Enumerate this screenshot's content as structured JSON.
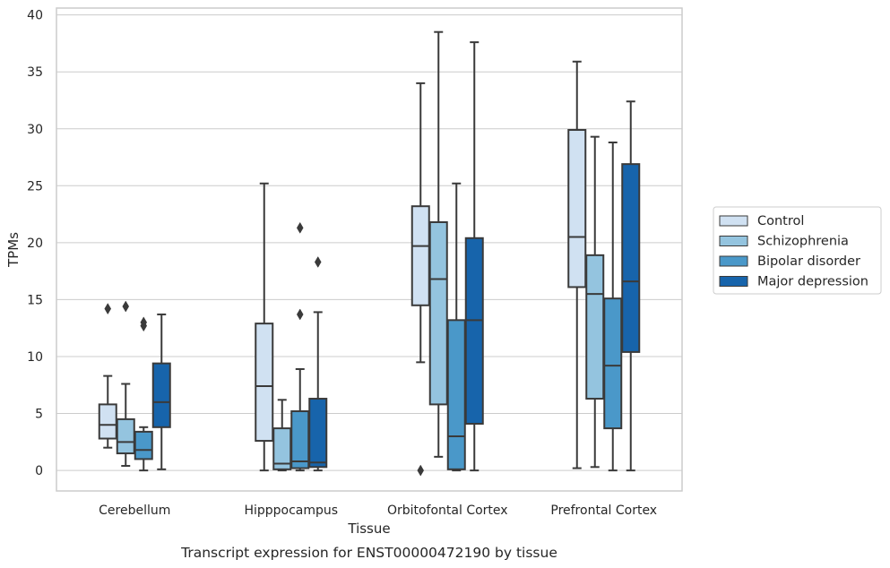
{
  "chart_data": {
    "type": "box",
    "caption": "Transcript expression for ENST00000472190 by tissue",
    "xlabel": "Tissue",
    "ylabel": "TPMs",
    "ylim": [
      -1.8,
      40.6
    ],
    "yticks": [
      0,
      5,
      10,
      15,
      20,
      25,
      30,
      35,
      40
    ],
    "grid": "horizontal",
    "legend_position": "right",
    "categories": [
      "Cerebellum",
      "Hipppocampus",
      "Orbitofontal Cortex",
      "Prefrontal Cortex"
    ],
    "series": [
      {
        "name": "Control",
        "color": "#d0e1f2",
        "boxes": [
          {
            "whisker_low": 2.0,
            "q1": 2.8,
            "median": 4.0,
            "q3": 5.8,
            "whisker_high": 8.3,
            "outliers": [
              14.2
            ]
          },
          {
            "whisker_low": 0.0,
            "q1": 2.6,
            "median": 7.4,
            "q3": 12.9,
            "whisker_high": 25.2,
            "outliers": []
          },
          {
            "whisker_low": 9.5,
            "q1": 14.5,
            "median": 19.7,
            "q3": 23.2,
            "whisker_high": 34.0,
            "outliers": [
              0.0
            ]
          },
          {
            "whisker_low": 0.2,
            "q1": 16.1,
            "median": 20.5,
            "q3": 29.9,
            "whisker_high": 35.9,
            "outliers": []
          }
        ]
      },
      {
        "name": "Schizophrenia",
        "color": "#94c4df",
        "boxes": [
          {
            "whisker_low": 0.4,
            "q1": 1.5,
            "median": 2.5,
            "q3": 4.5,
            "whisker_high": 7.6,
            "outliers": [
              14.4
            ]
          },
          {
            "whisker_low": 0.0,
            "q1": 0.1,
            "median": 0.6,
            "q3": 3.7,
            "whisker_high": 6.2,
            "outliers": []
          },
          {
            "whisker_low": 1.2,
            "q1": 5.8,
            "median": 16.8,
            "q3": 21.8,
            "whisker_high": 38.5,
            "outliers": []
          },
          {
            "whisker_low": 0.3,
            "q1": 6.3,
            "median": 15.5,
            "q3": 18.9,
            "whisker_high": 29.3,
            "outliers": []
          }
        ]
      },
      {
        "name": "Bipolar disorder",
        "color": "#4a98c9",
        "boxes": [
          {
            "whisker_low": 0.0,
            "q1": 1.0,
            "median": 1.8,
            "q3": 3.4,
            "whisker_high": 3.8,
            "outliers": [
              12.7,
              13.0
            ]
          },
          {
            "whisker_low": 0.0,
            "q1": 0.2,
            "median": 0.8,
            "q3": 5.2,
            "whisker_high": 8.9,
            "outliers": [
              13.7,
              21.3
            ]
          },
          {
            "whisker_low": 0.0,
            "q1": 0.1,
            "median": 3.0,
            "q3": 13.2,
            "whisker_high": 25.2,
            "outliers": []
          },
          {
            "whisker_low": 0.0,
            "q1": 3.7,
            "median": 9.2,
            "q3": 15.1,
            "whisker_high": 28.8,
            "outliers": []
          }
        ]
      },
      {
        "name": "Major depression",
        "color": "#1764ab",
        "boxes": [
          {
            "whisker_low": 0.1,
            "q1": 3.8,
            "median": 6.0,
            "q3": 9.4,
            "whisker_high": 13.7,
            "outliers": []
          },
          {
            "whisker_low": 0.0,
            "q1": 0.3,
            "median": 0.7,
            "q3": 6.3,
            "whisker_high": 13.9,
            "outliers": [
              18.3
            ]
          },
          {
            "whisker_low": 0.0,
            "q1": 4.1,
            "median": 13.2,
            "q3": 20.4,
            "whisker_high": 37.6,
            "outliers": []
          },
          {
            "whisker_low": 0.0,
            "q1": 10.4,
            "median": 16.6,
            "q3": 26.9,
            "whisker_high": 32.4,
            "outliers": []
          }
        ]
      }
    ]
  }
}
